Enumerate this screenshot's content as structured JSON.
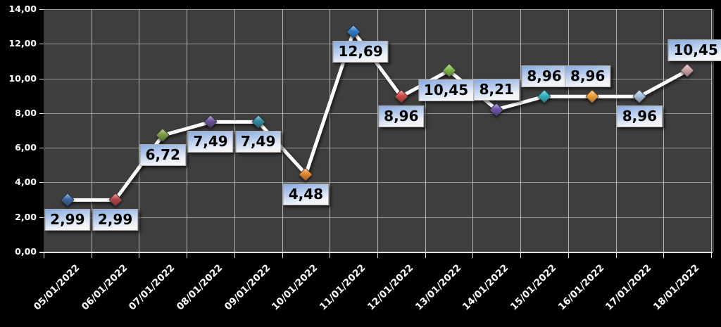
{
  "chart_data": {
    "type": "line",
    "title": "",
    "legend": "none",
    "grid": true,
    "categories": [
      "05/01/2022",
      "06/01/2022",
      "07/01/2022",
      "08/01/2022",
      "09/01/2022",
      "10/01/2022",
      "11/01/2022",
      "12/01/2022",
      "13/01/2022",
      "14/01/2022",
      "15/01/2022",
      "16/01/2022",
      "17/01/2022",
      "18/01/2022"
    ],
    "series": [
      {
        "values": [
          2.99,
          2.99,
          6.72,
          7.49,
          7.49,
          4.48,
          12.69,
          8.96,
          10.45,
          8.21,
          8.96,
          8.96,
          8.96,
          10.45
        ]
      }
    ],
    "value_labels": [
      "2,99",
      "2,99",
      "6,72",
      "7,49",
      "7,49",
      "4,48",
      "12,69",
      "8,96",
      "10,45",
      "8,21",
      "8,96",
      "8,96",
      "8,96",
      "10,45"
    ],
    "label_positions": [
      "below",
      "below",
      "below",
      "below",
      "below",
      "below",
      "below",
      "below",
      "below",
      "above",
      "above",
      "above",
      "below",
      "above"
    ],
    "label_dx": [
      0,
      0,
      0,
      0,
      0,
      0,
      10,
      0,
      -4,
      0,
      0,
      -6,
      0,
      12
    ],
    "marker_colors": [
      "#3a66a0",
      "#b34745",
      "#7d9b44",
      "#6a5296",
      "#2f8ba0",
      "#e0862e",
      "#2e7cc8",
      "#cf4a42",
      "#7ab648",
      "#6f55a8",
      "#30b0c0",
      "#f0a238",
      "#a6c0dc",
      "#cfa2a8"
    ],
    "ylim": [
      0,
      14
    ],
    "ytick_step": 2,
    "ytick_labels": [
      "0,00",
      "2,00",
      "4,00",
      "6,00",
      "8,00",
      "10,00",
      "12,00",
      "14,00"
    ],
    "colors": {
      "outer_bg": "#000000",
      "plot_bg": "#3e3e3e",
      "h_grid": "#969696",
      "v_grid": "#b5b5b5",
      "axis": "#e0e0e0",
      "line": "#ffffff",
      "tick_label_text": "#ffffff",
      "value_label_text": "#000000"
    }
  }
}
